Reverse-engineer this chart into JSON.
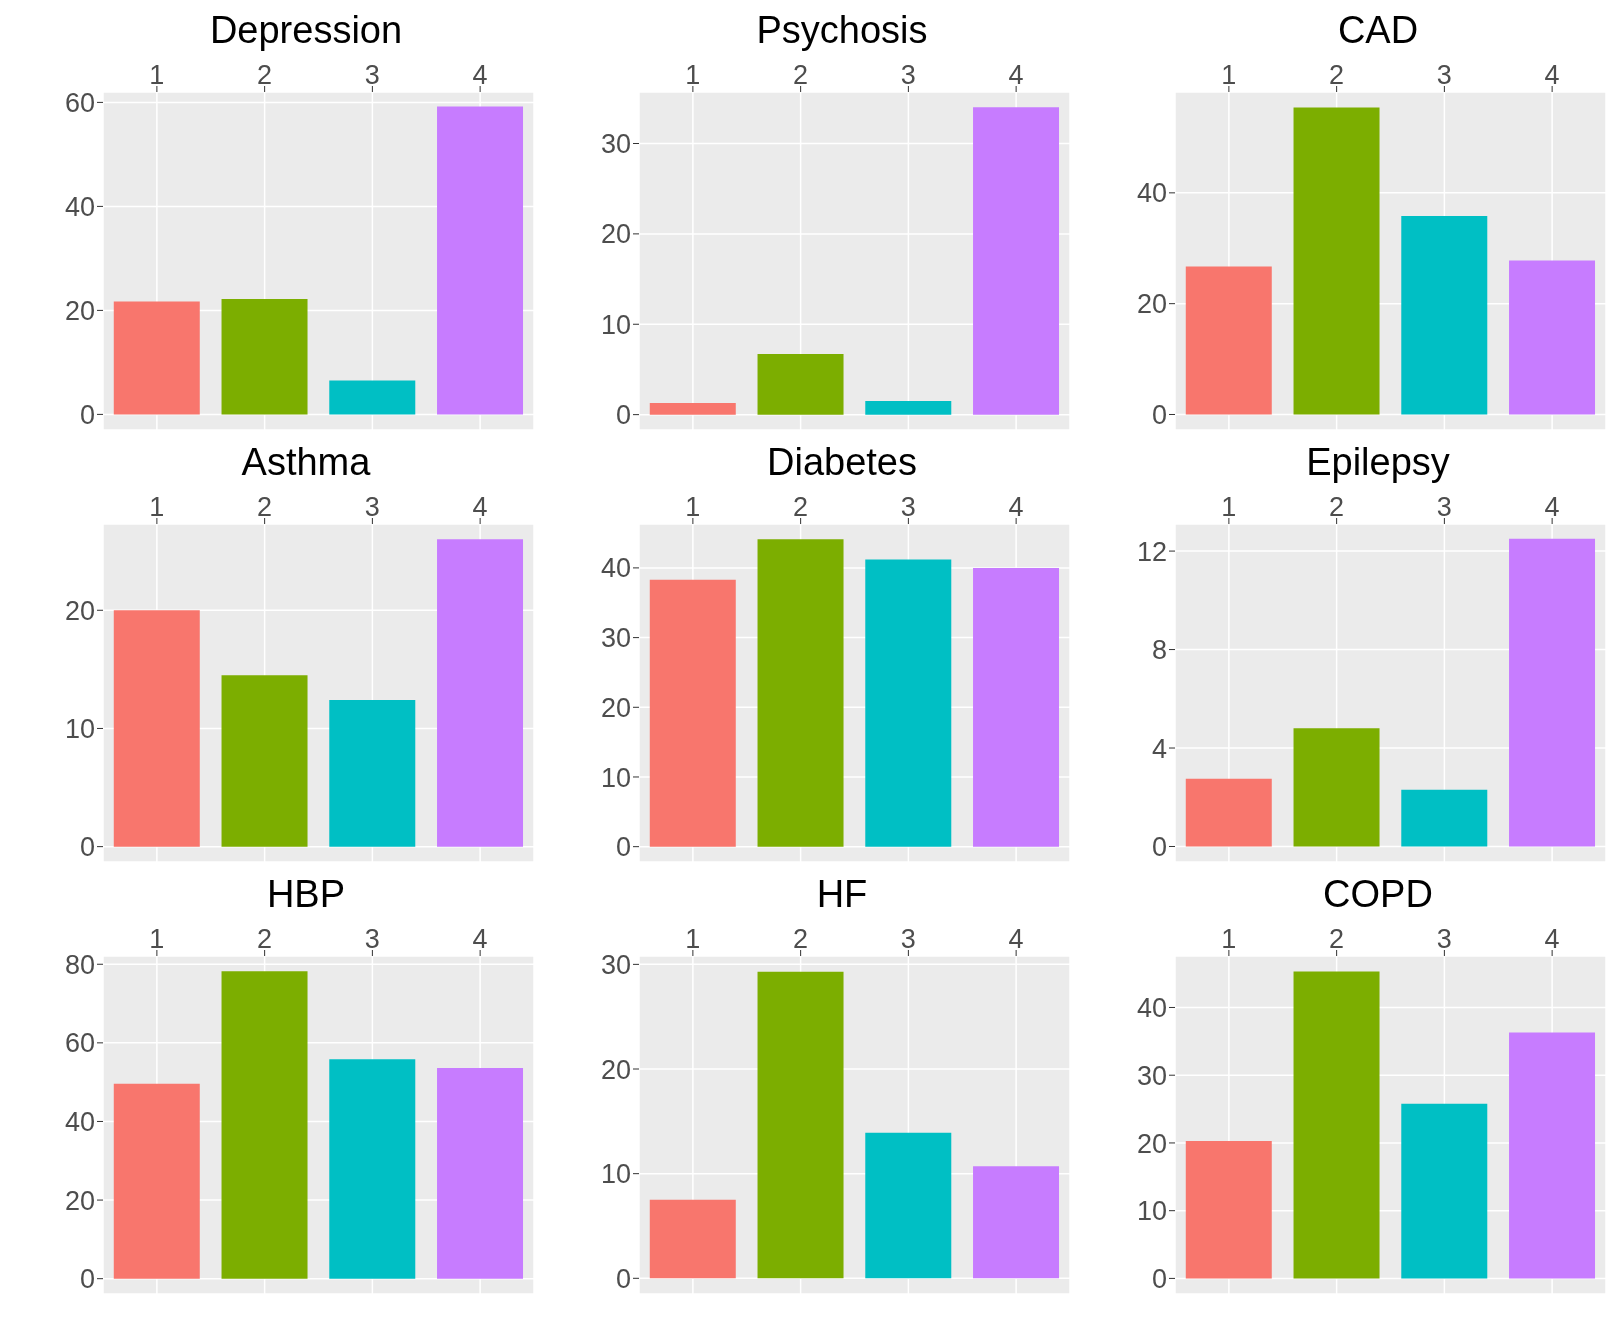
{
  "chart_data": [
    {
      "type": "bar",
      "title": "Depression",
      "categories": [
        "1",
        "2",
        "3",
        "4"
      ],
      "values": [
        21.7,
        22.2,
        6.5,
        59.2
      ],
      "colors": [
        "#f8766d",
        "#7cae00",
        "#00bfc4",
        "#c77cff"
      ],
      "ylim": [
        -3,
        62
      ],
      "yticks": [
        0,
        20,
        40,
        60
      ],
      "grid": true
    },
    {
      "type": "bar",
      "title": "Psychosis",
      "categories": [
        "1",
        "2",
        "3",
        "4"
      ],
      "values": [
        1.3,
        6.7,
        1.5,
        34.0
      ],
      "colors": [
        "#f8766d",
        "#7cae00",
        "#00bfc4",
        "#c77cff"
      ],
      "ylim": [
        -1.7,
        35.7
      ],
      "yticks": [
        0,
        10,
        20,
        30
      ],
      "grid": true
    },
    {
      "type": "bar",
      "title": "CAD",
      "categories": [
        "1",
        "2",
        "3",
        "4"
      ],
      "values": [
        26.7,
        55.4,
        35.8,
        27.8
      ],
      "colors": [
        "#f8766d",
        "#7cae00",
        "#00bfc4",
        "#c77cff"
      ],
      "ylim": [
        -2.8,
        58.2
      ],
      "yticks": [
        0,
        20,
        40
      ],
      "grid": true
    },
    {
      "type": "bar",
      "title": "Asthma",
      "categories": [
        "1",
        "2",
        "3",
        "4"
      ],
      "values": [
        20.0,
        14.5,
        12.4,
        26.0
      ],
      "colors": [
        "#f8766d",
        "#7cae00",
        "#00bfc4",
        "#c77cff"
      ],
      "ylim": [
        -1.3,
        27.3
      ],
      "yticks": [
        0,
        10,
        20
      ],
      "grid": true
    },
    {
      "type": "bar",
      "title": "Diabetes",
      "categories": [
        "1",
        "2",
        "3",
        "4"
      ],
      "values": [
        38.3,
        44.1,
        41.2,
        40.0
      ],
      "colors": [
        "#f8766d",
        "#7cae00",
        "#00bfc4",
        "#c77cff"
      ],
      "ylim": [
        -2.2,
        46.3
      ],
      "yticks": [
        0,
        10,
        20,
        30,
        40
      ],
      "grid": true
    },
    {
      "type": "bar",
      "title": "Epilepsy",
      "categories": [
        "1",
        "2",
        "3",
        "4"
      ],
      "values": [
        2.75,
        4.8,
        2.3,
        12.5
      ],
      "colors": [
        "#f8766d",
        "#7cae00",
        "#00bfc4",
        "#c77cff"
      ],
      "ylim": [
        -0.63,
        13.1
      ],
      "yticks": [
        0,
        4,
        8,
        12
      ],
      "grid": true
    },
    {
      "type": "bar",
      "title": "HBP",
      "categories": [
        "1",
        "2",
        "3",
        "4"
      ],
      "values": [
        49.6,
        78.2,
        55.8,
        53.6
      ],
      "colors": [
        "#f8766d",
        "#7cae00",
        "#00bfc4",
        "#c77cff"
      ],
      "ylim": [
        -3.9,
        82.1
      ],
      "yticks": [
        0,
        20,
        40,
        60,
        80
      ],
      "grid": true
    },
    {
      "type": "bar",
      "title": "HF",
      "categories": [
        "1",
        "2",
        "3",
        "4"
      ],
      "values": [
        7.5,
        29.3,
        13.9,
        10.7
      ],
      "colors": [
        "#f8766d",
        "#7cae00",
        "#00bfc4",
        "#c77cff"
      ],
      "ylim": [
        -1.5,
        30.8
      ],
      "yticks": [
        0,
        10,
        20,
        30
      ],
      "grid": true
    },
    {
      "type": "bar",
      "title": "COPD",
      "categories": [
        "1",
        "2",
        "3",
        "4"
      ],
      "values": [
        20.3,
        45.3,
        25.8,
        36.3
      ],
      "colors": [
        "#f8766d",
        "#7cae00",
        "#00bfc4",
        "#c77cff"
      ],
      "ylim": [
        -2.3,
        47.6
      ],
      "yticks": [
        0,
        10,
        20,
        30,
        40
      ],
      "grid": true
    }
  ]
}
